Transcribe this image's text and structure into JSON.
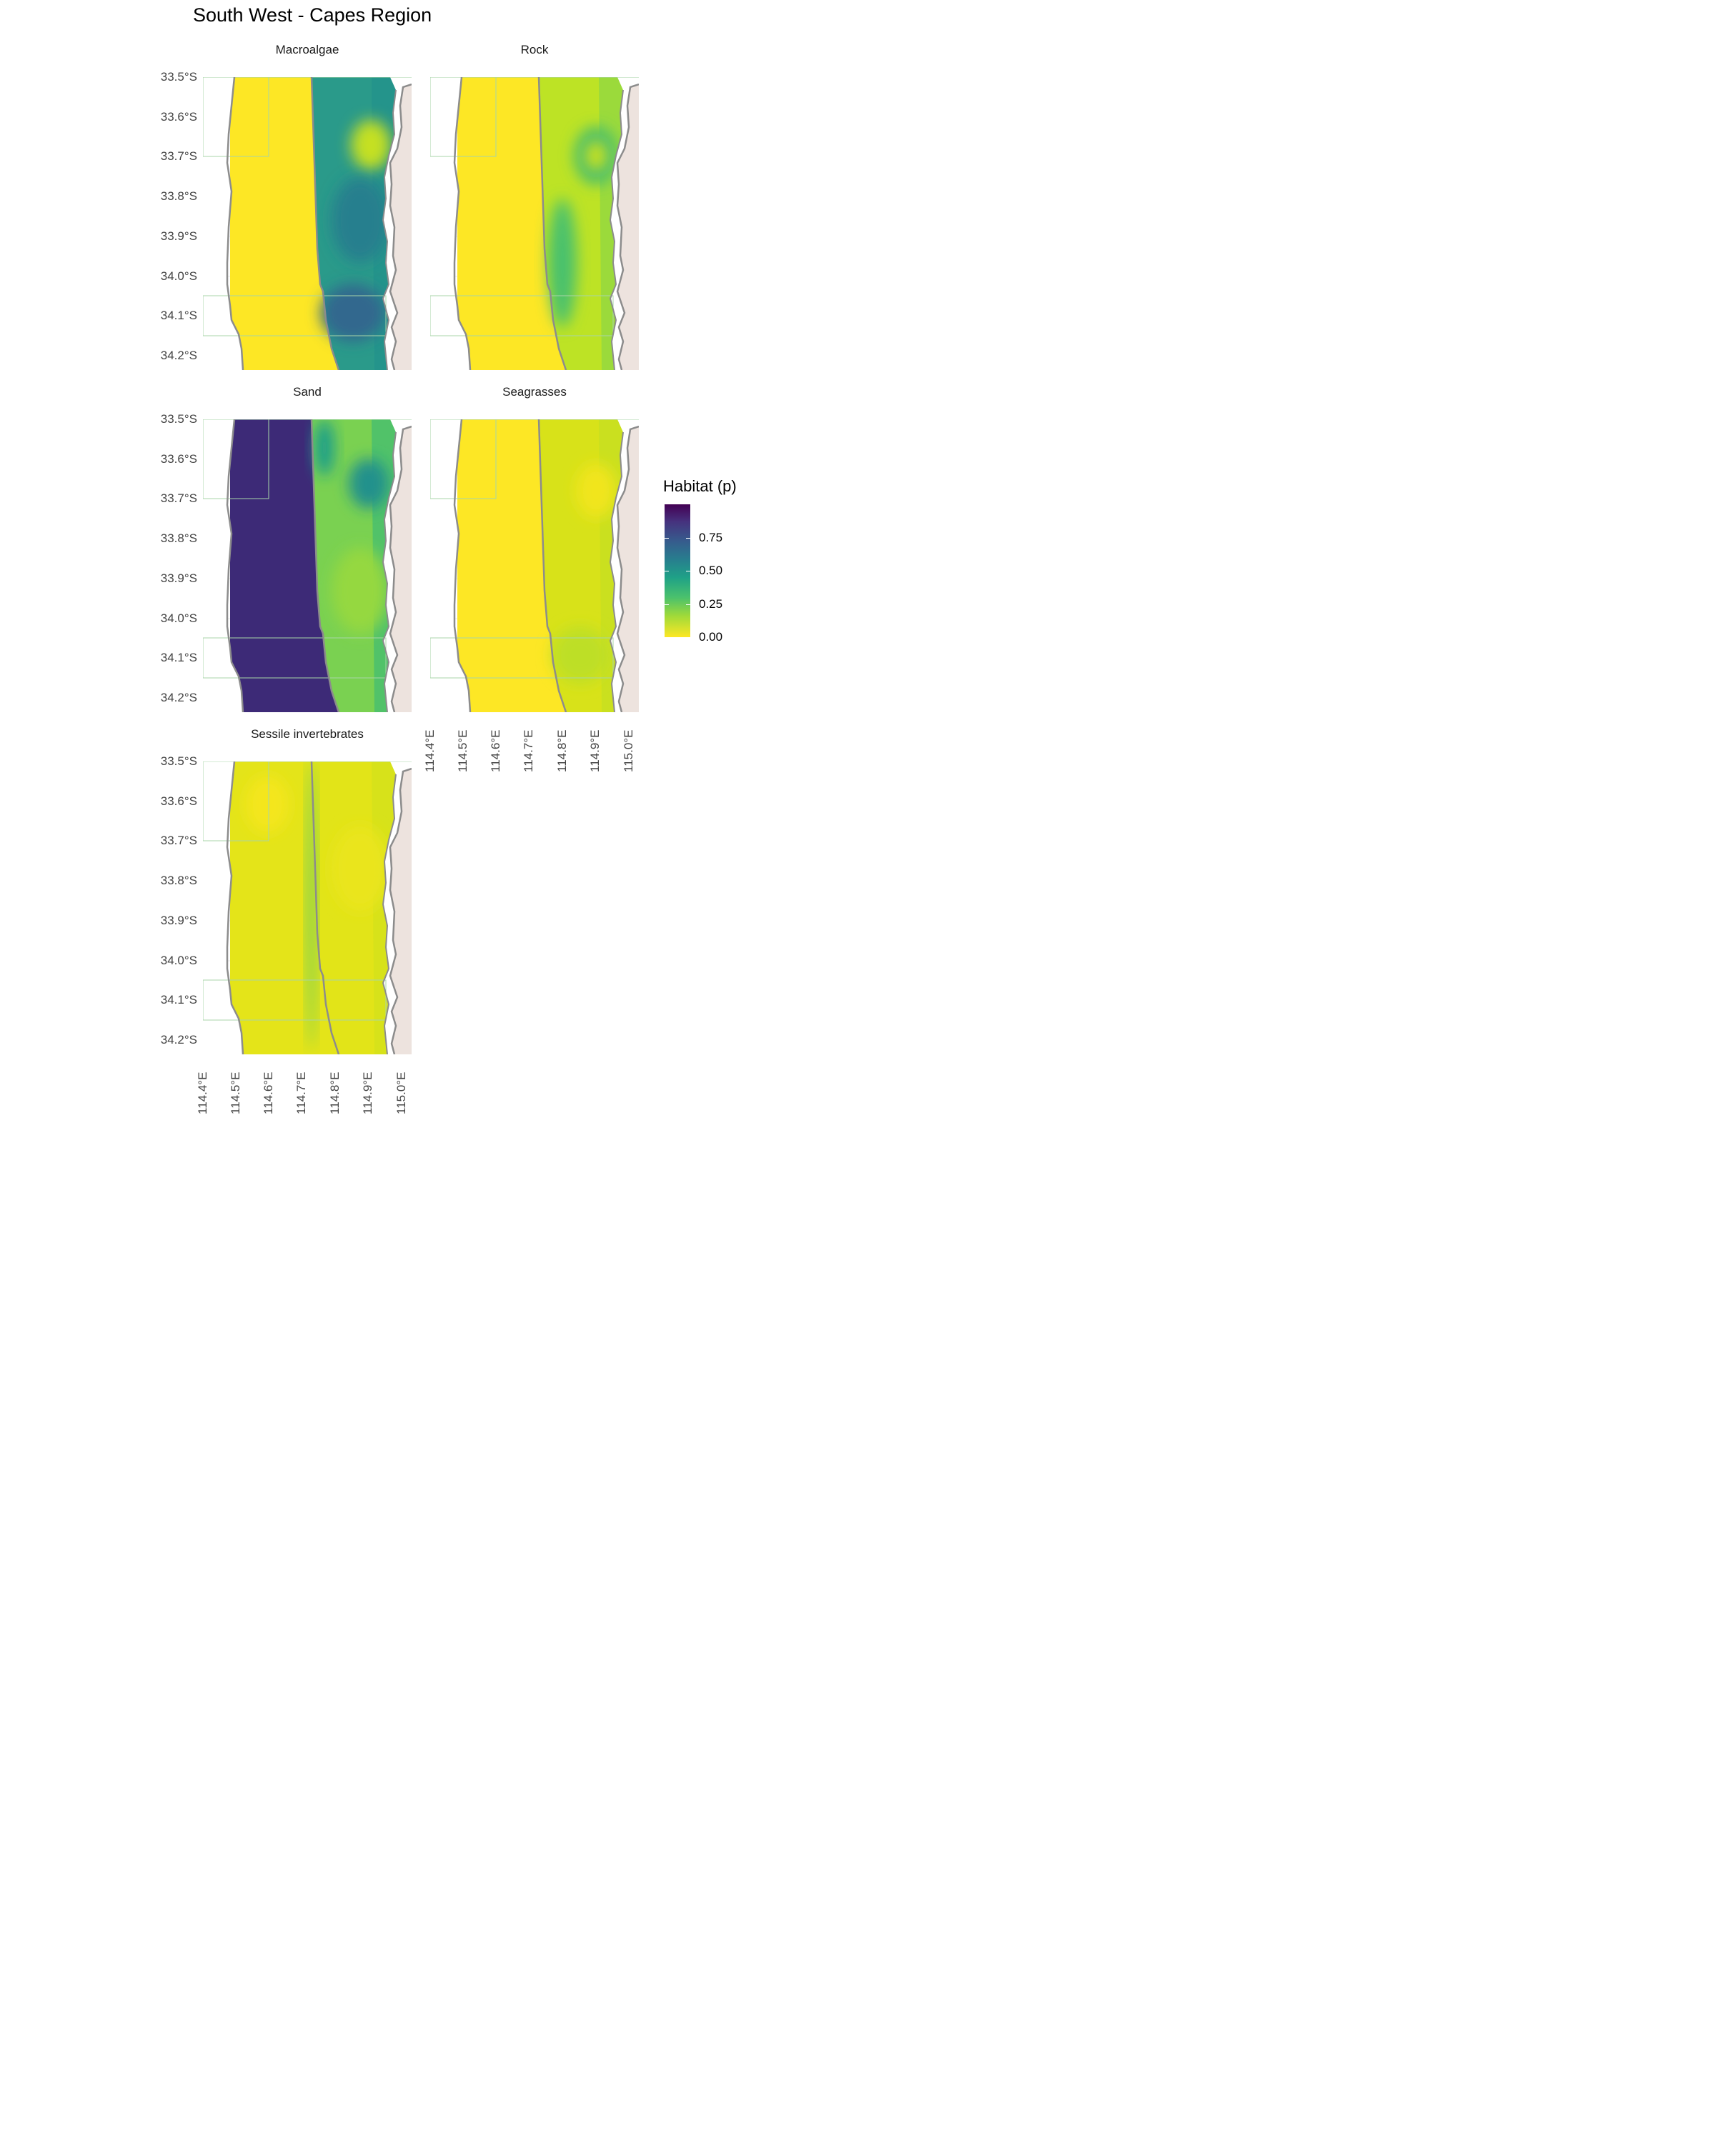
{
  "title": "South West - Capes Region",
  "legend": {
    "title": "Habitat (p)",
    "ticks": [
      {
        "label": "0.75",
        "value": 0.75
      },
      {
        "label": "0.50",
        "value": 0.5
      },
      {
        "label": "0.25",
        "value": 0.25
      },
      {
        "label": "0.00",
        "value": 0.0
      }
    ],
    "range": [
      0,
      1
    ],
    "palette": [
      "#fde725",
      "#a0da39",
      "#4ac16d",
      "#1fa187",
      "#277f8e",
      "#365c8d",
      "#46327e",
      "#440154"
    ]
  },
  "y_axis": [
    "33.5°S",
    "33.6°S",
    "33.7°S",
    "33.8°S",
    "33.9°S",
    "34.0°S",
    "34.1°S",
    "34.2°S"
  ],
  "x_axis": [
    "114.4°E",
    "114.5°E",
    "114.6°E",
    "114.7°E",
    "114.8°E",
    "114.9°E",
    "115.0°E"
  ],
  "colors": {
    "land": "#ede3de",
    "contour": "#8c8c8c",
    "boundary": "#a8d5a8",
    "grid": "#ebebeb"
  },
  "panels": [
    {
      "name": "Macroalgae"
    },
    {
      "name": "Rock"
    },
    {
      "name": "Sand"
    },
    {
      "name": "Seagrasses"
    },
    {
      "name": "Sessile invertebrates"
    }
  ]
}
